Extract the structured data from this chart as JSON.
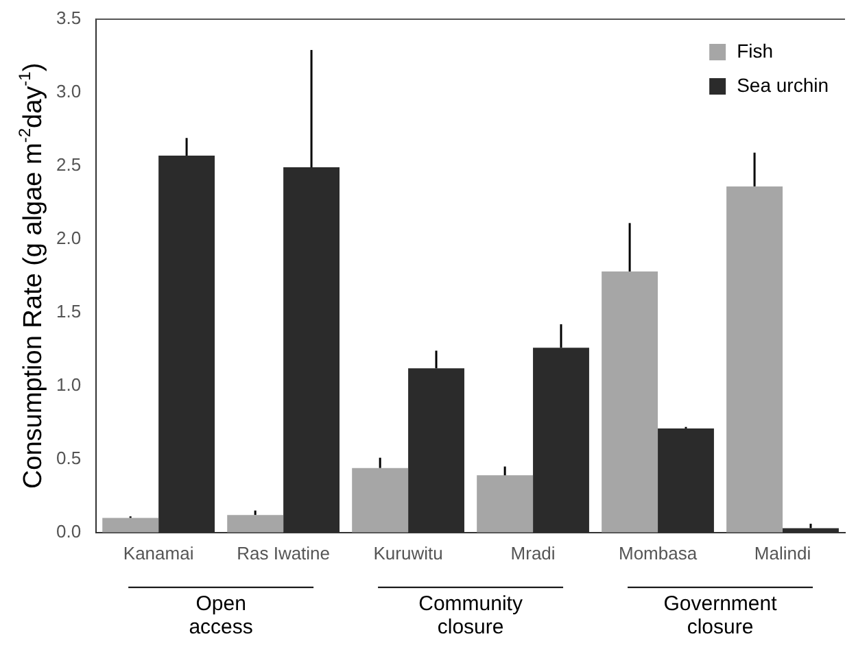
{
  "chart_data": {
    "type": "bar",
    "ylabel": "Consumption Rate (g algae m$^{-2}$day$^{-1}$)",
    "categories": [
      "Kanamai",
      "Ras Iwatine",
      "Kuruwitu",
      "Mradi",
      "Mombasa",
      "Malindi"
    ],
    "series": [
      {
        "name": "Fish",
        "color": "#a6a6a6",
        "values": [
          0.1,
          0.12,
          0.44,
          0.39,
          1.78,
          2.36
        ],
        "errors": [
          [
            0.1,
            0.11
          ],
          [
            0.12,
            0.15
          ],
          [
            0.44,
            0.51
          ],
          [
            0.39,
            0.45
          ],
          [
            1.78,
            2.11
          ],
          [
            2.36,
            2.59
          ]
        ]
      },
      {
        "name": "Sea urchin",
        "color": "#2b2b2b",
        "values": [
          2.57,
          2.49,
          1.12,
          1.26,
          0.71,
          0.03
        ],
        "errors": [
          [
            2.57,
            2.69
          ],
          [
            2.49,
            3.29
          ],
          [
            1.12,
            1.24
          ],
          [
            1.26,
            1.42
          ],
          [
            0.71,
            0.72
          ],
          [
            0.03,
            0.06
          ]
        ]
      }
    ],
    "ylim": [
      0,
      3.5
    ],
    "yticks": [
      {
        "value": 0,
        "label": "0.0"
      },
      0.5,
      {
        "value": 1,
        "label": "1.0"
      },
      1.5,
      {
        "value": 2,
        "label": "2.0"
      },
      2.5,
      {
        "value": 3,
        "label": "3.0"
      },
      3.5
    ],
    "grid": false,
    "legend": "top right",
    "annotations": [
      "Open\naccess",
      "Community\nclosure",
      "Government\nclosure"
    ]
  }
}
